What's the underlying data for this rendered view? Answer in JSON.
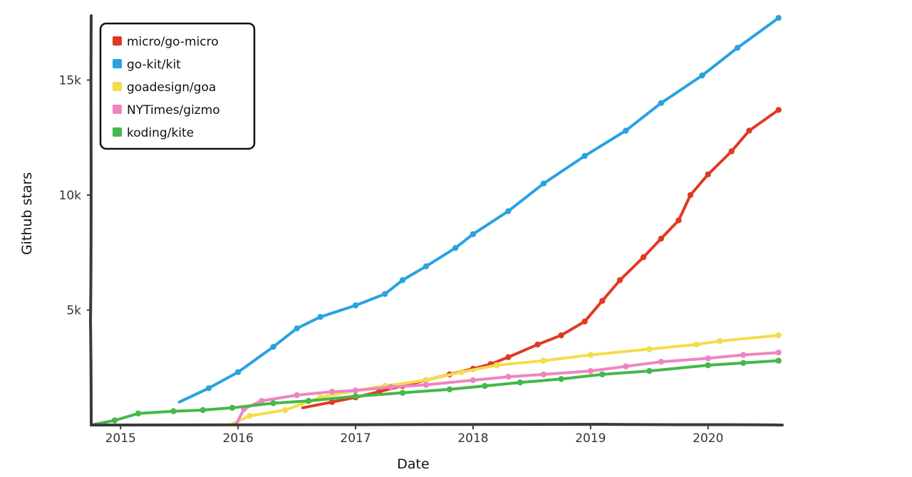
{
  "chart_data": {
    "type": "line",
    "title": "",
    "xlabel": "Date",
    "ylabel": "Github stars",
    "xlim": [
      2014.75,
      2020.62
    ],
    "ylim": [
      0,
      17800
    ],
    "x_ticks": [
      {
        "value": 2015,
        "label": "2015"
      },
      {
        "value": 2016,
        "label": "2016"
      },
      {
        "value": 2017,
        "label": "2017"
      },
      {
        "value": 2018,
        "label": "2018"
      },
      {
        "value": 2019,
        "label": "2019"
      },
      {
        "value": 2020,
        "label": "2020"
      }
    ],
    "y_ticks": [
      {
        "value": 5000,
        "label": "5k"
      },
      {
        "value": 10000,
        "label": "10k"
      },
      {
        "value": 15000,
        "label": "15k"
      }
    ],
    "grid": false,
    "legend_position": "top-left",
    "series": [
      {
        "name": "micro/go-micro",
        "color": "#e03a22",
        "points": [
          [
            2016.55,
            750
          ],
          [
            2016.8,
            1000
          ],
          [
            2017.0,
            1200
          ],
          [
            2017.2,
            1450
          ],
          [
            2017.4,
            1700
          ],
          [
            2017.6,
            1950
          ],
          [
            2017.8,
            2200
          ],
          [
            2018.0,
            2450
          ],
          [
            2018.15,
            2650
          ],
          [
            2018.3,
            2950
          ],
          [
            2018.55,
            3500
          ],
          [
            2018.75,
            3900
          ],
          [
            2018.95,
            4500
          ],
          [
            2019.1,
            5400
          ],
          [
            2019.25,
            6300
          ],
          [
            2019.45,
            7300
          ],
          [
            2019.6,
            8100
          ],
          [
            2019.75,
            8900
          ],
          [
            2019.85,
            10000
          ],
          [
            2020.0,
            10900
          ],
          [
            2020.2,
            11900
          ],
          [
            2020.35,
            12800
          ],
          [
            2020.6,
            13700
          ]
        ]
      },
      {
        "name": "go-kit/kit",
        "color": "#29a2e1",
        "points": [
          [
            2015.5,
            1000
          ],
          [
            2015.75,
            1600
          ],
          [
            2016.0,
            2300
          ],
          [
            2016.3,
            3400
          ],
          [
            2016.5,
            4200
          ],
          [
            2016.7,
            4700
          ],
          [
            2017.0,
            5200
          ],
          [
            2017.25,
            5700
          ],
          [
            2017.4,
            6300
          ],
          [
            2017.6,
            6900
          ],
          [
            2017.85,
            7700
          ],
          [
            2018.0,
            8300
          ],
          [
            2018.3,
            9300
          ],
          [
            2018.6,
            10500
          ],
          [
            2018.95,
            11700
          ],
          [
            2019.3,
            12800
          ],
          [
            2019.6,
            14000
          ],
          [
            2019.95,
            15200
          ],
          [
            2020.25,
            16400
          ],
          [
            2020.6,
            17700
          ]
        ]
      },
      {
        "name": "goadesign/goa",
        "color": "#f5dc4a",
        "points": [
          [
            2015.95,
            50
          ],
          [
            2016.1,
            400
          ],
          [
            2016.4,
            650
          ],
          [
            2016.7,
            1200
          ],
          [
            2017.0,
            1500
          ],
          [
            2017.25,
            1700
          ],
          [
            2017.6,
            1950
          ],
          [
            2017.9,
            2300
          ],
          [
            2018.2,
            2600
          ],
          [
            2018.6,
            2800
          ],
          [
            2019.0,
            3050
          ],
          [
            2019.5,
            3300
          ],
          [
            2019.9,
            3500
          ],
          [
            2020.1,
            3650
          ],
          [
            2020.6,
            3900
          ]
        ]
      },
      {
        "name": "NYTimes/gizmo",
        "color": "#ee85c0",
        "points": [
          [
            2015.98,
            0
          ],
          [
            2016.05,
            700
          ],
          [
            2016.2,
            1050
          ],
          [
            2016.5,
            1300
          ],
          [
            2016.8,
            1450
          ],
          [
            2017.0,
            1500
          ],
          [
            2017.3,
            1650
          ],
          [
            2017.6,
            1750
          ],
          [
            2018.0,
            1950
          ],
          [
            2018.3,
            2100
          ],
          [
            2018.6,
            2200
          ],
          [
            2019.0,
            2350
          ],
          [
            2019.3,
            2550
          ],
          [
            2019.6,
            2750
          ],
          [
            2020.0,
            2900
          ],
          [
            2020.3,
            3050
          ],
          [
            2020.6,
            3150
          ]
        ]
      },
      {
        "name": "koding/kite",
        "color": "#44b84a",
        "points": [
          [
            2014.75,
            0
          ],
          [
            2014.95,
            200
          ],
          [
            2015.15,
            500
          ],
          [
            2015.45,
            600
          ],
          [
            2015.7,
            650
          ],
          [
            2015.95,
            750
          ],
          [
            2016.3,
            950
          ],
          [
            2016.6,
            1050
          ],
          [
            2017.0,
            1250
          ],
          [
            2017.4,
            1400
          ],
          [
            2017.8,
            1550
          ],
          [
            2018.1,
            1700
          ],
          [
            2018.4,
            1850
          ],
          [
            2018.75,
            2000
          ],
          [
            2019.1,
            2200
          ],
          [
            2019.5,
            2350
          ],
          [
            2020.0,
            2600
          ],
          [
            2020.3,
            2700
          ],
          [
            2020.6,
            2800
          ]
        ]
      }
    ]
  }
}
